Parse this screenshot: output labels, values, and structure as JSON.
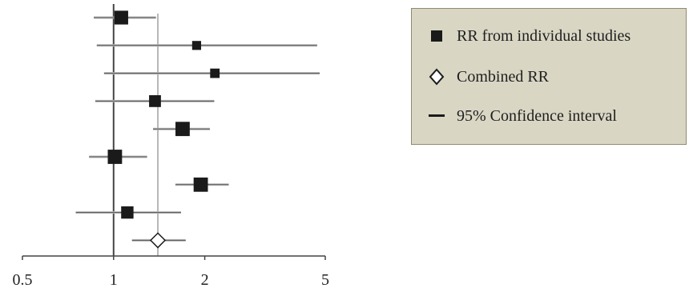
{
  "chart_data": {
    "type": "forest",
    "xscale": "log",
    "xlim": [
      0.5,
      5
    ],
    "ticks": [
      {
        "value": 0.5,
        "label": "0.5"
      },
      {
        "value": 1,
        "label": "1"
      },
      {
        "value": 2,
        "label": "2"
      },
      {
        "value": 5,
        "label": "5"
      }
    ],
    "reference_value": 1,
    "combined_line_value": 1.4,
    "studies": [
      {
        "rr": 1.06,
        "ci": [
          0.86,
          1.38
        ],
        "weight": 0.85
      },
      {
        "rr": 1.88,
        "ci": [
          0.88,
          4.7
        ],
        "weight": 0.35
      },
      {
        "rr": 2.16,
        "ci": [
          0.93,
          5.0
        ],
        "weight": 0.4
      },
      {
        "rr": 1.37,
        "ci": [
          0.87,
          2.15
        ],
        "weight": 0.65
      },
      {
        "rr": 1.69,
        "ci": [
          1.35,
          2.08
        ],
        "weight": 0.9
      },
      {
        "rr": 1.01,
        "ci": [
          0.83,
          1.29
        ],
        "weight": 0.9
      },
      {
        "rr": 1.94,
        "ci": [
          1.6,
          2.4
        ],
        "weight": 0.9
      },
      {
        "rr": 1.11,
        "ci": [
          0.75,
          1.67
        ],
        "weight": 0.7
      }
    ],
    "combined": {
      "rr": 1.4,
      "ci": [
        1.15,
        1.73
      ]
    },
    "legend": [
      {
        "symbol": "filled-square",
        "label": "RR from individual studies"
      },
      {
        "symbol": "open-diamond",
        "label": "Combined RR"
      },
      {
        "symbol": "line",
        "label": "95% Confidence interval"
      }
    ],
    "colors": {
      "marker": "#1a1a1a",
      "ci_line": "#b8b8b8",
      "axis": "#444444",
      "legend_bg": "#d9d6c4"
    }
  }
}
